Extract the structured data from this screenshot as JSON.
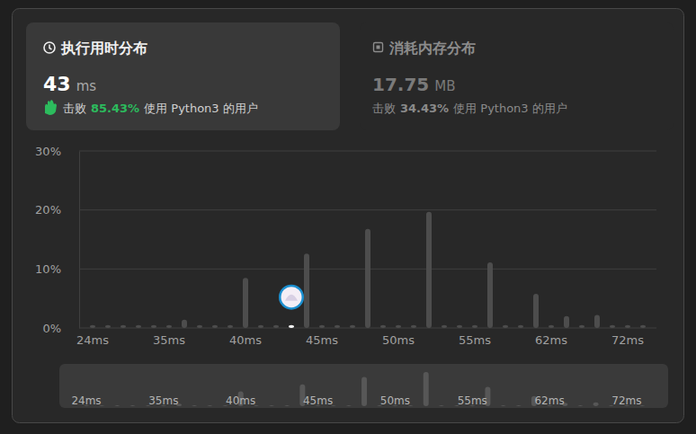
{
  "header": {
    "runtime": {
      "title": "执行用时分布",
      "value": "43",
      "unit": "ms",
      "beats_prefix": "击败",
      "beats": "85.43%",
      "beats_suffix": "使用 Python3 的用户"
    },
    "memory": {
      "title": "消耗内存分布",
      "value": "17.75",
      "unit": "MB",
      "beats_prefix": "击败",
      "beats": "34.43%",
      "beats_suffix": "使用 Python3 的用户"
    }
  },
  "chart_data": {
    "type": "bar",
    "categories": [
      "24ms",
      null,
      null,
      null,
      null,
      "35ms",
      null,
      null,
      null,
      null,
      "40ms",
      null,
      null,
      null,
      null,
      "45ms",
      null,
      null,
      null,
      null,
      "50ms",
      null,
      null,
      null,
      null,
      "55ms",
      null,
      null,
      null,
      null,
      "62ms",
      null,
      null,
      null,
      null,
      "72ms",
      null
    ],
    "values": [
      0.5,
      0.5,
      0.5,
      0.5,
      0.5,
      0.5,
      1.4,
      0.5,
      0.5,
      0.5,
      8.5,
      0.5,
      0.5,
      0.5,
      12.6,
      0.5,
      0.5,
      0.5,
      16.8,
      0.5,
      0.5,
      0.5,
      19.7,
      0.5,
      0.5,
      0.5,
      11.1,
      0.5,
      0.5,
      5.8,
      0.5,
      2,
      0.5,
      2.2,
      0.5,
      0.5,
      0.5
    ],
    "colors": [
      "#4d4d4d",
      "#4d4d4d",
      "#4d4d4d",
      "#4d4d4d",
      "#4d4d4d",
      "#4d4d4d",
      "#4d4d4d",
      "#4d4d4d",
      "#4d4d4d",
      "#4d4d4d",
      "#4d4d4d",
      "#4d4d4d",
      "#4d4d4d",
      "#ffffff",
      "#4d4d4d",
      "#4d4d4d",
      "#4d4d4d",
      "#4d4d4d",
      "#4d4d4d",
      "#4d4d4d",
      "#4d4d4d",
      "#4d4d4d",
      "#4d4d4d",
      "#4d4d4d",
      "#4d4d4d",
      "#4d4d4d",
      "#4d4d4d",
      "#4d4d4d",
      "#4d4d4d",
      "#4d4d4d",
      "#4d4d4d",
      "#4d4d4d",
      "#4d4d4d",
      "#4d4d4d",
      "#4d4d4d",
      "#4d4d4d",
      "#4d4d4d"
    ],
    "ylim": [
      0,
      30
    ],
    "yticks": [
      {
        "value": 0,
        "label": "0%"
      },
      {
        "value": 10,
        "label": "10%"
      },
      {
        "value": 20,
        "label": "20%"
      },
      {
        "value": 30,
        "label": "30%"
      }
    ],
    "grid": true
  }
}
